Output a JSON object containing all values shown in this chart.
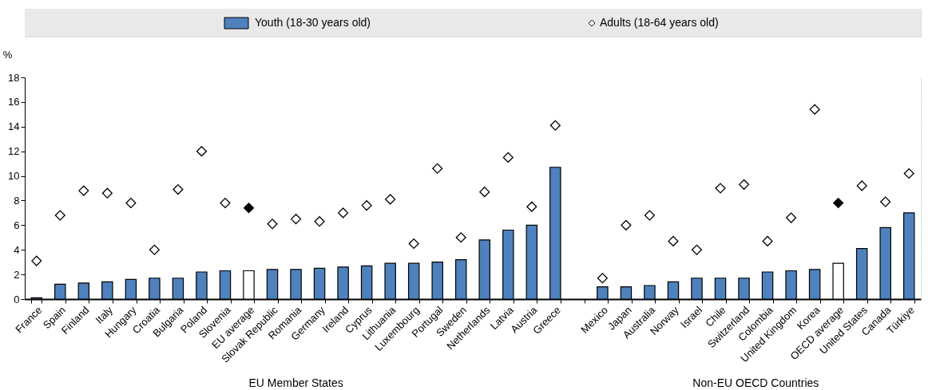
{
  "chart_data": {
    "type": "bar",
    "ylabel": "%",
    "ylim": [
      0,
      18
    ],
    "yticks": [
      0,
      2,
      4,
      6,
      8,
      10,
      12,
      14,
      16,
      18
    ],
    "grid": true,
    "legend": "top",
    "marker": "diamond",
    "categories": [
      "France",
      "Spain",
      "Finland",
      "Italy",
      "Hungary",
      "Croatia",
      "Bulgaria",
      "Poland",
      "Slovenia",
      "EU average",
      "Slovak Republic",
      "Romania",
      "Germany",
      "Ireland",
      "Cyprus",
      "Lithuania",
      "Luxembourg",
      "Portugal",
      "Sweden",
      "Netherlands",
      "Latvia",
      "Austria",
      "Greece",
      null,
      "Mexico",
      "Japan",
      "Australia",
      "Norway",
      "Israel",
      "Chile",
      "Switzerland",
      "Colombia",
      "United Kingdom",
      "Korea",
      "OECD average",
      "United States",
      "Canada",
      "Türkiye"
    ],
    "series": [
      {
        "name": "Youth (18-30 years old)",
        "color": "#4f81bd",
        "colors": [
          "#4f81bd",
          "#4f81bd",
          "#4f81bd",
          "#4f81bd",
          "#4f81bd",
          "#4f81bd",
          "#4f81bd",
          "#4f81bd",
          "#4f81bd",
          "#ffffff",
          "#4f81bd",
          "#4f81bd",
          "#4f81bd",
          "#4f81bd",
          "#4f81bd",
          "#4f81bd",
          "#4f81bd",
          "#4f81bd",
          "#4f81bd",
          "#4f81bd",
          "#4f81bd",
          "#4f81bd",
          "#4f81bd",
          null,
          "#4f81bd",
          "#4f81bd",
          "#4f81bd",
          "#4f81bd",
          "#4f81bd",
          "#4f81bd",
          "#4f81bd",
          "#4f81bd",
          "#4f81bd",
          "#4f81bd",
          "#ffffff",
          "#4f81bd",
          "#4f81bd",
          "#4f81bd"
        ],
        "values": [
          0.1,
          1.2,
          1.3,
          1.4,
          1.6,
          1.7,
          1.7,
          2.2,
          2.3,
          2.3,
          2.4,
          2.4,
          2.5,
          2.6,
          2.7,
          2.9,
          2.9,
          3.0,
          3.2,
          4.8,
          5.6,
          6.0,
          10.7,
          null,
          1.0,
          1.0,
          1.1,
          1.4,
          1.7,
          1.7,
          1.7,
          2.2,
          2.3,
          2.4,
          2.9,
          4.1,
          5.8,
          7.0
        ]
      },
      {
        "name": "Adults (18-64 years old)",
        "type": "scatter",
        "color": "#ffffff",
        "colors": [
          "#ffffff",
          "#ffffff",
          "#ffffff",
          "#ffffff",
          "#ffffff",
          "#ffffff",
          "#ffffff",
          "#ffffff",
          "#ffffff",
          "#000000",
          "#ffffff",
          "#ffffff",
          "#ffffff",
          "#ffffff",
          "#ffffff",
          "#ffffff",
          "#ffffff",
          "#ffffff",
          "#ffffff",
          "#ffffff",
          "#ffffff",
          "#ffffff",
          "#ffffff",
          null,
          "#ffffff",
          "#ffffff",
          "#ffffff",
          "#ffffff",
          "#ffffff",
          "#ffffff",
          "#ffffff",
          "#ffffff",
          "#ffffff",
          "#ffffff",
          "#000000",
          "#ffffff",
          "#ffffff",
          "#ffffff"
        ],
        "values": [
          3.1,
          6.8,
          8.8,
          8.6,
          7.8,
          4.0,
          8.9,
          12.0,
          7.8,
          7.4,
          6.1,
          6.5,
          6.3,
          7.0,
          7.6,
          8.1,
          4.5,
          10.6,
          5.0,
          8.7,
          11.5,
          7.5,
          14.1,
          null,
          1.7,
          6.0,
          6.8,
          4.7,
          4.0,
          9.0,
          9.3,
          4.7,
          6.6,
          15.4,
          7.8,
          9.2,
          7.9,
          10.2
        ]
      }
    ],
    "annotations": [
      "EU Member States",
      "Non-EU OECD Countries"
    ]
  }
}
